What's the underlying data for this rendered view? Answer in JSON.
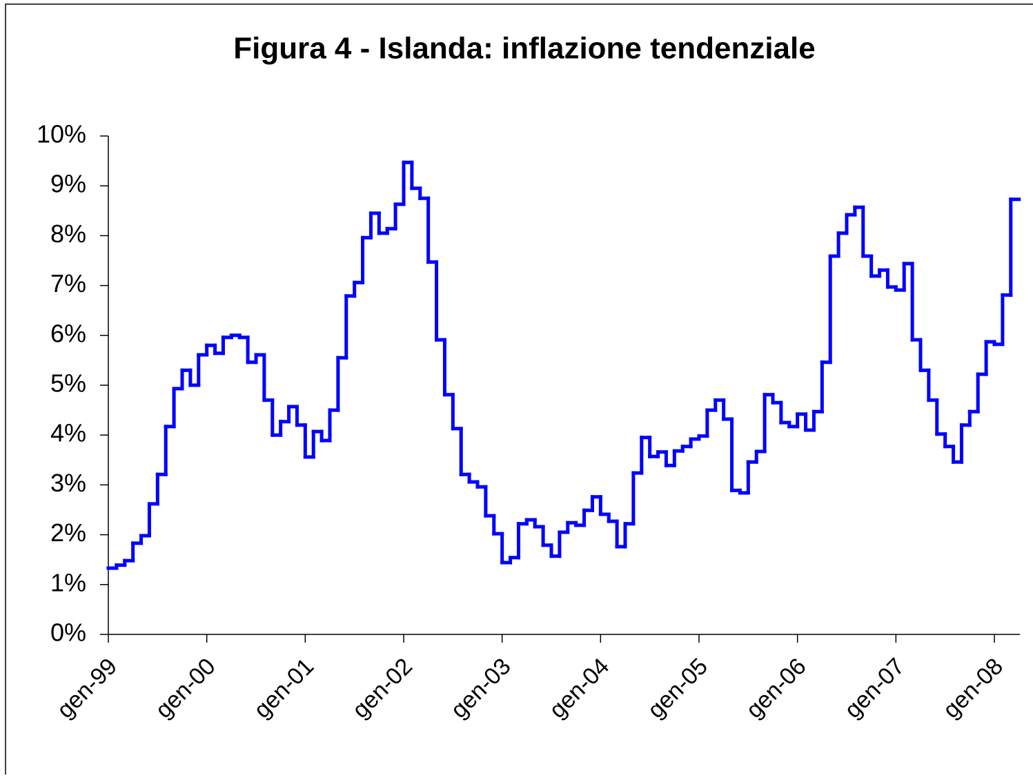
{
  "chart_data": {
    "type": "line",
    "title": "Figura 4 - Islanda: inflazione tendenziale",
    "categories": [
      "gen-99",
      null,
      null,
      null,
      null,
      null,
      null,
      null,
      null,
      null,
      null,
      null,
      "gen-00",
      null,
      null,
      null,
      null,
      null,
      null,
      null,
      null,
      null,
      null,
      null,
      "gen-01",
      null,
      null,
      null,
      null,
      null,
      null,
      null,
      null,
      null,
      null,
      null,
      "gen-02",
      null,
      null,
      null,
      null,
      null,
      null,
      null,
      null,
      null,
      null,
      null,
      "gen-03",
      null,
      null,
      null,
      null,
      null,
      null,
      null,
      null,
      null,
      null,
      null,
      "gen-04",
      null,
      null,
      null,
      null,
      null,
      null,
      null,
      null,
      null,
      null,
      null,
      "gen-05",
      null,
      null,
      null,
      null,
      null,
      null,
      null,
      null,
      null,
      null,
      null,
      "gen-06",
      null,
      null,
      null,
      null,
      null,
      null,
      null,
      null,
      null,
      null,
      null,
      "gen-07",
      null,
      null,
      null,
      null,
      null,
      null,
      null,
      null,
      null,
      null,
      null,
      "gen-08",
      null,
      null
    ],
    "series": [
      {
        "color": "#0000ff",
        "step": true,
        "values": [
          1.33,
          1.39,
          1.48,
          1.83,
          1.98,
          2.62,
          3.21,
          4.17,
          4.93,
          5.3,
          5.0,
          5.61,
          5.8,
          5.64,
          5.96,
          6.0,
          5.96,
          5.46,
          5.61,
          4.7,
          4.0,
          4.27,
          4.57,
          4.2,
          3.56,
          4.07,
          3.89,
          4.5,
          5.55,
          6.79,
          7.06,
          7.96,
          8.45,
          8.05,
          8.14,
          8.63,
          9.47,
          8.95,
          8.75,
          7.47,
          5.91,
          4.81,
          4.13,
          3.21,
          3.06,
          2.96,
          2.38,
          2.02,
          1.44,
          1.54,
          2.22,
          2.3,
          2.16,
          1.79,
          1.57,
          2.05,
          2.24,
          2.19,
          2.49,
          2.76,
          2.41,
          2.27,
          1.76,
          2.22,
          3.24,
          3.95,
          3.57,
          3.66,
          3.39,
          3.68,
          3.77,
          3.92,
          3.98,
          4.5,
          4.7,
          4.32,
          2.89,
          2.84,
          3.46,
          3.67,
          4.81,
          4.65,
          4.25,
          4.17,
          4.42,
          4.1,
          4.47,
          5.46,
          7.59,
          8.05,
          8.42,
          8.57,
          7.59,
          7.19,
          7.31,
          6.97,
          6.91,
          7.44,
          5.91,
          5.3,
          4.7,
          4.02,
          3.77,
          3.46,
          4.2,
          4.47,
          5.22,
          5.87,
          5.82,
          6.81,
          8.73
        ]
      }
    ],
    "ylim": [
      0,
      10
    ],
    "yticks": [
      {
        "value": 0,
        "label": "0%"
      },
      {
        "value": 1,
        "label": "1%"
      },
      {
        "value": 2,
        "label": "2%"
      },
      {
        "value": 3,
        "label": "3%"
      },
      {
        "value": 4,
        "label": "4%"
      },
      {
        "value": 5,
        "label": "5%"
      },
      {
        "value": 6,
        "label": "6%"
      },
      {
        "value": 7,
        "label": "7%"
      },
      {
        "value": 8,
        "label": "8%"
      },
      {
        "value": 9,
        "label": "9%"
      },
      {
        "value": 10,
        "label": "10%"
      }
    ]
  }
}
